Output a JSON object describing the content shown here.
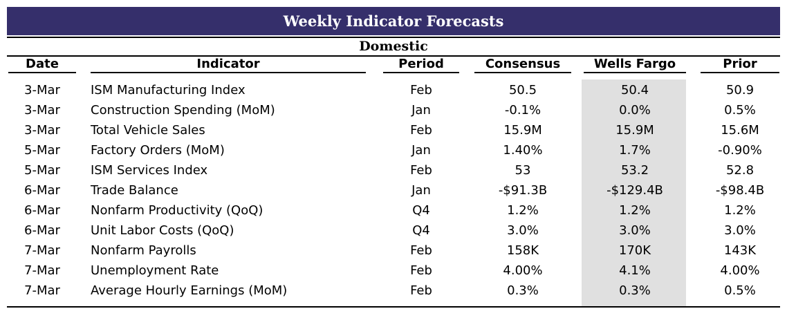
{
  "title": "Weekly Indicator Forecasts",
  "section": "Domestic",
  "columns": {
    "date": "Date",
    "indicator": "Indicator",
    "period": "Period",
    "consensus": "Consensus",
    "wells_fargo": "Wells Fargo",
    "prior": "Prior"
  },
  "rows": [
    {
      "date": "3-Mar",
      "indicator": "ISM Manufacturing Index",
      "period": "Feb",
      "consensus": "50.5",
      "wells_fargo": "50.4",
      "prior": "50.9"
    },
    {
      "date": "3-Mar",
      "indicator": "Construction Spending (MoM)",
      "period": "Jan",
      "consensus": "-0.1%",
      "wells_fargo": "0.0%",
      "prior": "0.5%"
    },
    {
      "date": "3-Mar",
      "indicator": "Total Vehicle Sales",
      "period": "Feb",
      "consensus": "15.9M",
      "wells_fargo": "15.9M",
      "prior": "15.6M"
    },
    {
      "date": "5-Mar",
      "indicator": "Factory Orders (MoM)",
      "period": "Jan",
      "consensus": "1.40%",
      "wells_fargo": "1.7%",
      "prior": "-0.90%"
    },
    {
      "date": "5-Mar",
      "indicator": "ISM Services Index",
      "period": "Feb",
      "consensus": "53",
      "wells_fargo": "53.2",
      "prior": "52.8"
    },
    {
      "date": "6-Mar",
      "indicator": "Trade Balance",
      "period": "Jan",
      "consensus": "-$91.3B",
      "wells_fargo": "-$129.4B",
      "prior": "-$98.4B"
    },
    {
      "date": "6-Mar",
      "indicator": "Nonfarm Productivity (QoQ)",
      "period": "Q4",
      "consensus": "1.2%",
      "wells_fargo": "1.2%",
      "prior": "1.2%"
    },
    {
      "date": "6-Mar",
      "indicator": "Unit Labor Costs (QoQ)",
      "period": "Q4",
      "consensus": "3.0%",
      "wells_fargo": "3.0%",
      "prior": "3.0%"
    },
    {
      "date": "7-Mar",
      "indicator": "Nonfarm Payrolls",
      "period": "Feb",
      "consensus": "158K",
      "wells_fargo": "170K",
      "prior": "143K"
    },
    {
      "date": "7-Mar",
      "indicator": "Unemployment Rate",
      "period": "Feb",
      "consensus": "4.00%",
      "wells_fargo": "4.1%",
      "prior": "4.00%"
    },
    {
      "date": "7-Mar",
      "indicator": "Average Hourly Earnings (MoM)",
      "period": "Feb",
      "consensus": "0.3%",
      "wells_fargo": "0.3%",
      "prior": "0.5%"
    }
  ],
  "colors": {
    "title_bar": "#352f6b",
    "highlight_column": "#e0e0e0"
  }
}
